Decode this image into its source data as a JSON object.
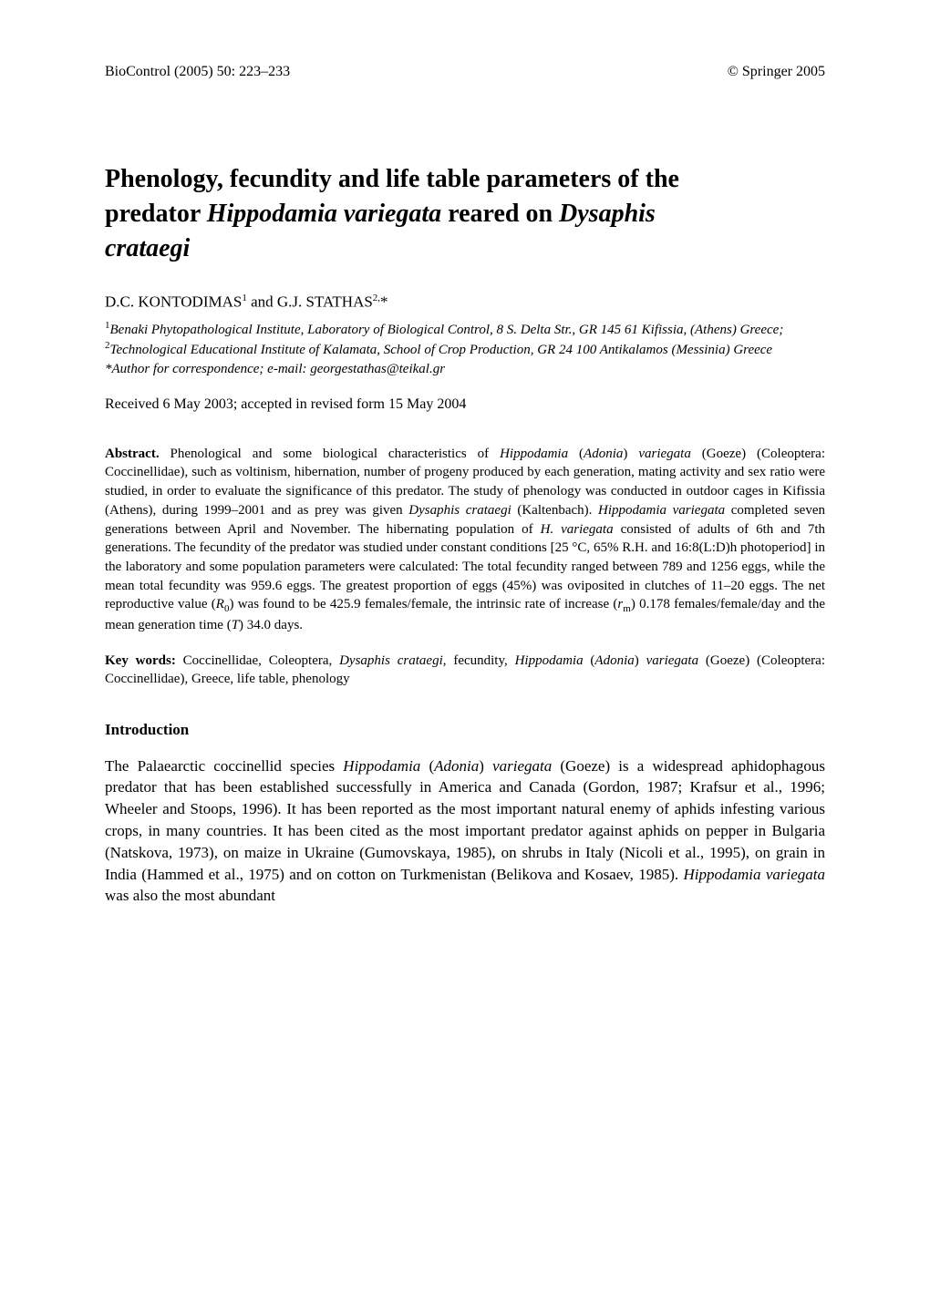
{
  "header": {
    "journal": "BioControl (2005) 50: 223–233",
    "copyright": "© Springer 2005"
  },
  "title": {
    "line1_pre": "Phenology, fecundity and life table parameters of the",
    "line2_pre": "predator ",
    "line2_italic1": "Hippodamia variegata",
    "line2_mid": " reared on ",
    "line2_italic2": "Dysaphis",
    "line3_italic": "crataegi"
  },
  "authors": {
    "author1": "D.C. KONTODIMAS",
    "sup1": "1",
    "and": " and ",
    "author2": "G.J. STATHAS",
    "sup2": "2,",
    "asterisk": "*"
  },
  "affiliations": {
    "sup1": "1",
    "aff1": "Benaki Phytopathological Institute, Laboratory of Biological Control, 8 S. Delta Str., GR 145 61 Kifissia, (Athens) Greece; ",
    "sup2": "2",
    "aff2": "Technological Educational Institute of Kalamata, School of Crop Production, GR 24 100 Antikalamos (Messinia) Greece",
    "corresp": "*Author for correspondence; e-mail: georgestathas@teikal.gr"
  },
  "received": "Received 6 May 2003; accepted in revised form 15 May 2004",
  "abstract": {
    "label": "Abstract.",
    "text1": " Phenological and some biological characteristics of ",
    "italic1": "Hippodamia",
    "text1b": " (",
    "italic1b": "Adonia",
    "text1c": ") ",
    "italic2": "variegata",
    "text2": " (Goeze) (Coleoptera: Coccinellidae), such as voltinism, hibernation, number of progeny produced by each generation, mating activity and sex ratio were studied, in order to evaluate the significance of this predator. The study of phenology was conducted in outdoor cages in Kifissia (Athens), during 1999–2001 and as prey was given ",
    "italic3": "Dysaphis crataegi",
    "text3": " (Kaltenbach). ",
    "italic4": "Hippodamia variegata",
    "text4": " completed seven generations between April and November. The hibernating population of ",
    "italic5": "H. variegata",
    "text5": " consisted of adults of 6th and 7th generations. The fecundity of the predator was studied under constant conditions [25 °C, 65% R.H. and 16:8(L:D)h photoperiod] in the laboratory and some population parameters were calculated: The total fecundity ranged between 789 and 1256 eggs, while the mean total fecundity was 959.6 eggs. The greatest proportion of eggs (45%) was oviposited in clutches of 11–20 eggs. The net reproductive value (",
    "italic6": "R",
    "sub1": "0",
    "text6": ") was found to be 425.9 females/female, the intrinsic rate of increase (",
    "italic7": "r",
    "sub2": "m",
    "text7": ") 0.178 females/female/day and the mean generation time (",
    "italic8": "T",
    "text8": ") 34.0 days."
  },
  "keywords": {
    "label": "Key words:",
    "text1": " Coccinellidae, Coleoptera, ",
    "italic1": "Dysaphis crataegi",
    "text2": ", fecundity, ",
    "italic2": "Hippodamia",
    "text2b": " (",
    "italic2b": "Adonia",
    "text2c": ") ",
    "italic3": "variegata",
    "text3": " (Goeze) (Coleoptera: Coccinellidae), Greece, life table, phenology"
  },
  "section_heading": "Introduction",
  "body": {
    "text1": "The Palaearctic coccinellid species ",
    "italic1": "Hippodamia",
    "text1b": " (",
    "italic1b": "Adonia",
    "text1c": ") ",
    "italic2": "variegata",
    "text2": " (Goeze) is a widespread aphidophagous predator that has been established successfully in America and Canada (Gordon, 1987; Krafsur et al., 1996; Wheeler and Stoops, 1996). It has been reported as the most important natural enemy of aphids infesting various crops, in many countries. It has been cited as the most important predator against aphids on pepper in Bulgaria (Natskova, 1973), on maize in Ukraine (Gumovskaya, 1985), on shrubs in Italy (Nicoli et al., 1995), on grain in India (Hammed et al., 1975) and on cotton on Turkmenistan (Belikova and Kosaev, 1985). ",
    "italic3": "Hippodamia variegata",
    "text3": " was also the most abundant"
  }
}
